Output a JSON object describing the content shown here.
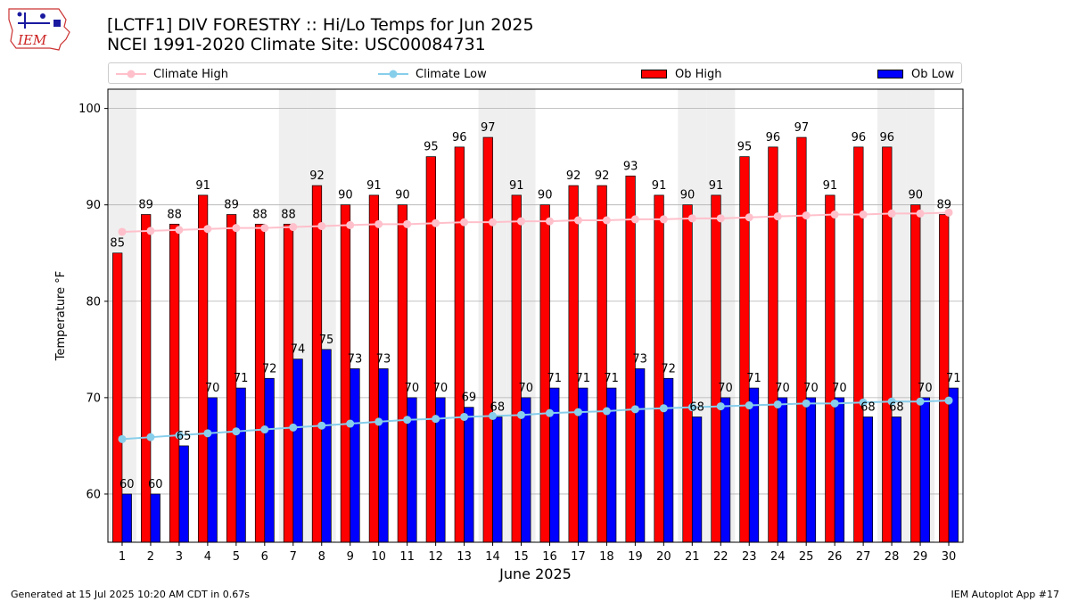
{
  "header": {
    "title_line1": "[LCTF1] DIV FORESTRY :: Hi/Lo Temps for Jun 2025",
    "title_line2": "NCEI 1991-2020 Climate Site: USC00084731",
    "logo_text": "IEM"
  },
  "footer": {
    "generated": "Generated at 15 Jul 2025 10:20 AM CDT in 0.67s",
    "app": "IEM Autoplot App #17"
  },
  "colors": {
    "ob_high": "#ff0000",
    "ob_low": "#0000ff",
    "climate_high": "#ffc0cb",
    "climate_low": "#87ceeb",
    "weekend_shade": "#efefef",
    "grid": "#b0b0b0"
  },
  "chart_data": {
    "type": "bar",
    "xlabel": "June 2025",
    "ylabel": "Temperature °F",
    "ylim": [
      55,
      102
    ],
    "yticks": [
      60,
      70,
      80,
      90,
      100
    ],
    "grid": "horizontal",
    "legend_placement": "top",
    "categories": [
      "1",
      "2",
      "3",
      "4",
      "5",
      "6",
      "7",
      "8",
      "9",
      "10",
      "11",
      "12",
      "13",
      "14",
      "15",
      "16",
      "17",
      "18",
      "19",
      "20",
      "21",
      "22",
      "23",
      "24",
      "25",
      "26",
      "27",
      "28",
      "29",
      "30"
    ],
    "shaded_days": [
      1,
      7,
      8,
      14,
      15,
      21,
      22,
      28,
      29
    ],
    "series": [
      {
        "name": "Ob High",
        "kind": "bar",
        "values": [
          85,
          89,
          88,
          91,
          89,
          88,
          88,
          92,
          90,
          91,
          90,
          95,
          96,
          97,
          91,
          90,
          92,
          92,
          93,
          91,
          90,
          91,
          95,
          96,
          97,
          91,
          96,
          96,
          90,
          89
        ]
      },
      {
        "name": "Ob Low",
        "kind": "bar",
        "values": [
          60,
          60,
          65,
          70,
          71,
          72,
          74,
          75,
          73,
          73,
          70,
          70,
          69,
          68,
          70,
          71,
          71,
          71,
          73,
          72,
          68,
          70,
          71,
          70,
          70,
          70,
          68,
          68,
          70,
          71
        ]
      },
      {
        "name": "Climate High",
        "kind": "line",
        "values": [
          87.2,
          87.3,
          87.4,
          87.5,
          87.6,
          87.6,
          87.7,
          87.8,
          87.9,
          88.0,
          88.0,
          88.1,
          88.2,
          88.2,
          88.3,
          88.3,
          88.4,
          88.4,
          88.5,
          88.5,
          88.6,
          88.6,
          88.7,
          88.8,
          88.9,
          89.0,
          89.0,
          89.1,
          89.1,
          89.2
        ]
      },
      {
        "name": "Climate Low",
        "kind": "line",
        "values": [
          65.7,
          65.9,
          66.1,
          66.3,
          66.5,
          66.7,
          66.9,
          67.1,
          67.3,
          67.5,
          67.7,
          67.8,
          68.0,
          68.1,
          68.2,
          68.4,
          68.5,
          68.6,
          68.8,
          68.9,
          69.0,
          69.1,
          69.2,
          69.3,
          69.4,
          69.4,
          69.5,
          69.6,
          69.6,
          69.7
        ]
      }
    ]
  }
}
